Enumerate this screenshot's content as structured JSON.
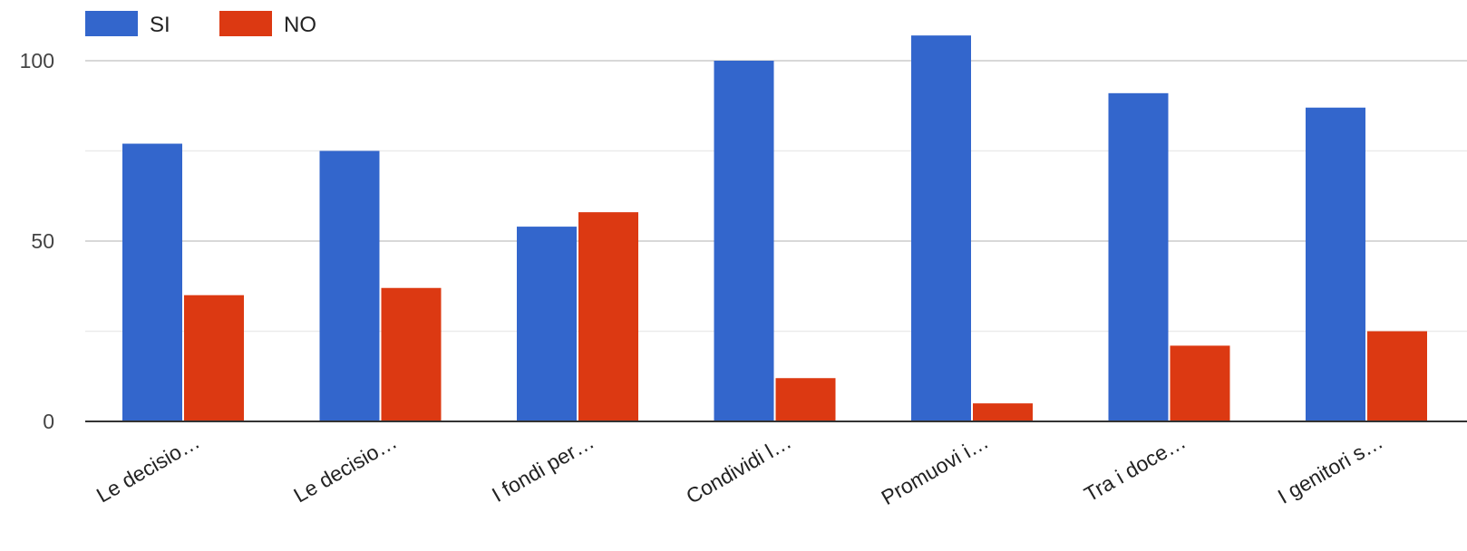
{
  "chart_data": {
    "type": "bar",
    "categories": [
      "Le decisio…",
      "Le decisio…",
      "I fondi per…",
      "Condividi l…",
      "Promuovi i…",
      "Tra i doce…",
      "I genitori s…"
    ],
    "series": [
      {
        "name": "SI",
        "color": "#3366cc",
        "values": [
          77,
          75,
          54,
          100,
          107,
          91,
          87
        ]
      },
      {
        "name": "NO",
        "color": "#dc3912",
        "values": [
          35,
          37,
          58,
          12,
          5,
          21,
          25
        ]
      }
    ],
    "yticks": [
      0,
      50,
      100
    ],
    "ylim": [
      0,
      100
    ],
    "grid": true,
    "legend_position": "top-left",
    "title": "",
    "xlabel": "",
    "ylabel": ""
  }
}
